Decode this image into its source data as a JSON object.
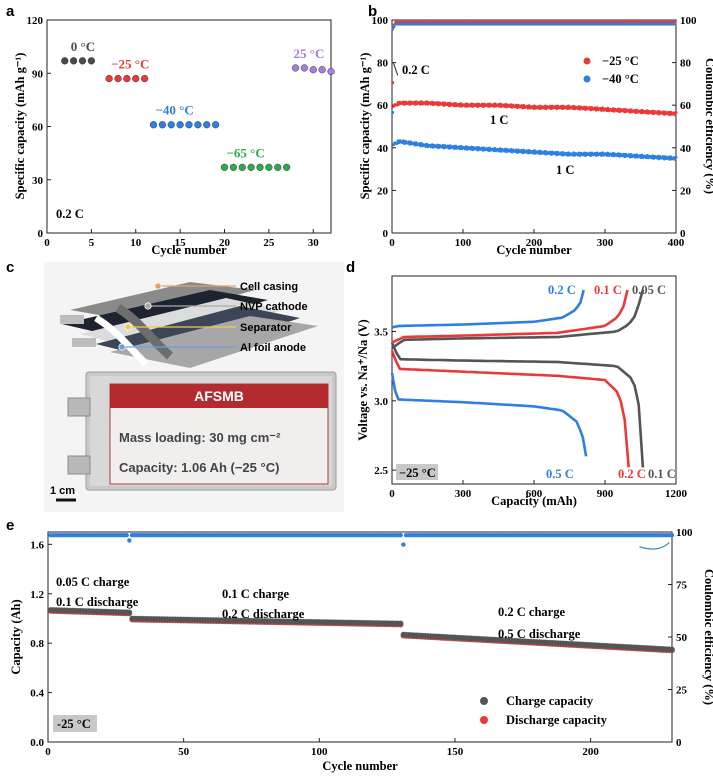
{
  "panels": {
    "a": "a",
    "b": "b",
    "c": "c",
    "d": "d",
    "e": "e"
  },
  "colors": {
    "black": "#4a4a4a",
    "red": "#e83a3a",
    "blue": "#2e7fe0",
    "green": "#2fa84f",
    "purple": "#a77be0",
    "grey_d": "#555555"
  },
  "chart_data": [
    {
      "id": "a",
      "type": "scatter",
      "xlabel": "Cycle number",
      "ylabel": "Specific capacity (mAh g⁻¹)",
      "xlim": [
        0,
        32
      ],
      "ylim": [
        0,
        120
      ],
      "xticks": [
        0,
        5,
        10,
        15,
        20,
        25,
        30
      ],
      "yticks": [
        0,
        30,
        60,
        90,
        120
      ],
      "groups": [
        {
          "label": "0 °C",
          "color_key": "black",
          "x": [
            2,
            3,
            4,
            5
          ],
          "values": [
            97,
            97,
            97,
            97
          ]
        },
        {
          "label": "−25 °C",
          "color_key": "red",
          "x": [
            7,
            8,
            9,
            10,
            11
          ],
          "values": [
            87,
            87,
            87,
            87,
            87
          ]
        },
        {
          "label": "−40 °C",
          "color_key": "blue",
          "x": [
            12,
            13,
            14,
            15,
            16,
            17,
            18,
            19
          ],
          "values": [
            61,
            61,
            61,
            61,
            61,
            61,
            61,
            61
          ]
        },
        {
          "label": "−65 °C",
          "color_key": "green",
          "x": [
            20,
            21,
            22,
            23,
            24,
            25,
            26,
            27
          ],
          "values": [
            37,
            37,
            37,
            37,
            37,
            37,
            37,
            37
          ]
        },
        {
          "label": "25 °C",
          "color_key": "purple",
          "x": [
            28,
            29,
            30,
            31,
            32
          ],
          "values": [
            93,
            93,
            92,
            92,
            91
          ]
        }
      ],
      "rate_label": "0.2 C"
    },
    {
      "id": "b",
      "type": "line",
      "xlabel": "Cycle number",
      "ylabel": "Specific capacity (mAh g⁻¹)",
      "ylabel2": "Coulombic efficiency (%)",
      "xlim": [
        0,
        400
      ],
      "ylim": [
        0,
        100
      ],
      "y2lim": [
        0,
        100
      ],
      "xticks": [
        0,
        100,
        200,
        300,
        400
      ],
      "yticks": [
        0,
        20,
        40,
        60,
        80,
        100
      ],
      "y2ticks": [
        0,
        20,
        40,
        60,
        80,
        100
      ],
      "series": [
        {
          "name": "−25 °C",
          "color_key": "red",
          "x": [
            0,
            2,
            5,
            10,
            30,
            50,
            100,
            150,
            200,
            250,
            300,
            350,
            400
          ],
          "values": [
            80,
            60,
            60,
            61,
            61,
            61,
            60,
            60,
            59,
            59,
            58,
            57,
            56
          ]
        },
        {
          "name": "−40 °C",
          "color_key": "blue",
          "x": [
            0,
            2,
            5,
            10,
            30,
            50,
            100,
            150,
            200,
            250,
            300,
            350,
            400
          ],
          "values": [
            70,
            42,
            42,
            43,
            42,
            41,
            40,
            39,
            38,
            37,
            37,
            36,
            35
          ]
        }
      ],
      "ce": [
        {
          "color_key": "red",
          "x": [
            0,
            5,
            400
          ],
          "values": [
            96,
            99,
            99
          ]
        },
        {
          "color_key": "blue",
          "x": [
            0,
            5,
            400
          ],
          "values": [
            95,
            98,
            98
          ]
        }
      ],
      "annotations": {
        "start_rate": "0.2 C",
        "red_rate": "1 C",
        "blue_rate": "1 C"
      },
      "legend_position": "top-right"
    },
    {
      "id": "d",
      "type": "line",
      "xlabel": "Capacity (mAh)",
      "ylabel": "Voltage vs. Na⁺/Na (V)",
      "xlim": [
        0,
        1200
      ],
      "ylim": [
        2.4,
        3.9
      ],
      "xticks": [
        0,
        300,
        600,
        900,
        1200
      ],
      "yticks": [
        2.5,
        3.0,
        3.5,
        4.0
      ],
      "ytick_labels": [
        "2.5",
        "3.0",
        "3.5",
        "4.0"
      ],
      "series": [
        {
          "name": "0.05 C",
          "color_key": "grey_d",
          "kind": "charge",
          "x": [
            0,
            50,
            300,
            700,
            950,
            1000,
            1030,
            1060
          ],
          "values": [
            3.38,
            3.44,
            3.45,
            3.46,
            3.5,
            3.55,
            3.62,
            3.8
          ]
        },
        {
          "name": "0.1 C",
          "color_key": "grey_d",
          "kind": "discharge",
          "x": [
            0,
            30,
            300,
            700,
            950,
            1020,
            1045,
            1060
          ],
          "values": [
            3.42,
            3.3,
            3.29,
            3.28,
            3.25,
            3.15,
            2.95,
            2.52
          ]
        },
        {
          "name": "0.1 C",
          "color_key": "red",
          "kind": "charge",
          "x": [
            0,
            50,
            300,
            700,
            900,
            950,
            975,
            995
          ],
          "values": [
            3.42,
            3.46,
            3.47,
            3.49,
            3.54,
            3.6,
            3.66,
            3.8
          ]
        },
        {
          "name": "0.2 C",
          "color_key": "red",
          "kind": "discharge",
          "x": [
            0,
            30,
            300,
            700,
            900,
            960,
            985,
            1000
          ],
          "values": [
            3.36,
            3.23,
            3.21,
            3.18,
            3.15,
            3.05,
            2.85,
            2.52
          ]
        },
        {
          "name": "0.2 C",
          "color_key": "blue",
          "kind": "charge",
          "x": [
            0,
            30,
            300,
            600,
            720,
            770,
            795,
            810
          ],
          "values": [
            3.53,
            3.54,
            3.55,
            3.57,
            3.6,
            3.65,
            3.7,
            3.8
          ]
        },
        {
          "name": "0.5 C",
          "color_key": "blue",
          "kind": "discharge",
          "x": [
            0,
            20,
            300,
            600,
            720,
            780,
            805,
            820
          ],
          "values": [
            3.2,
            3.01,
            2.99,
            2.96,
            2.93,
            2.85,
            2.75,
            2.6
          ]
        }
      ],
      "labels": {
        "c1": "0.2 C",
        "c2": "0.1 C",
        "c3": "0.05 C",
        "d1": "0.5 C",
        "d2": "0.2 C",
        "d3": "0.1 C"
      },
      "temp": "−25 °C"
    },
    {
      "id": "e",
      "type": "scatter",
      "xlabel": "Cycle number",
      "ylabel": "Capacity (Ah)",
      "ylabel2": "Coulombic efficiency (%)",
      "xlim": [
        0,
        230
      ],
      "ylim": [
        0,
        1.7
      ],
      "y2lim": [
        0,
        100
      ],
      "xticks": [
        0,
        50,
        100,
        150,
        200
      ],
      "yticks": [
        0.0,
        0.4,
        0.8,
        1.2,
        1.6
      ],
      "ytick_labels": [
        "0.0",
        "0.4",
        "0.8",
        "1.2",
        "1.6"
      ],
      "y2ticks": [
        0,
        25,
        50,
        75,
        100
      ],
      "series": [
        {
          "name": "Charge capacity",
          "color_key": "grey_d",
          "segments": [
            [
              1,
              30,
              1.07,
              1.05
            ],
            [
              31,
              130,
              1.0,
              0.96
            ],
            [
              131,
              230,
              0.87,
              0.75
            ]
          ]
        },
        {
          "name": "Discharge capacity",
          "color_key": "red",
          "segments": [
            [
              1,
              30,
              1.06,
              1.04
            ],
            [
              31,
              130,
              0.99,
              0.95
            ],
            [
              131,
              230,
              0.86,
              0.74
            ]
          ]
        }
      ],
      "ce": {
        "color_key": "blue",
        "value": 98.5,
        "dips": [
          [
            30,
            96
          ],
          [
            131,
            94
          ]
        ]
      },
      "annotations": {
        "g1a": "0.05 C charge",
        "g1b": "0.1 C discharge",
        "g2a": "0.1 C charge",
        "g2b": "0.2 C discharge",
        "g3a": "0.2 C charge",
        "g3b": "0.5 C discharge",
        "temp": "-25 °C"
      },
      "legend_position": "bottom-right"
    }
  ],
  "panel_c": {
    "labels": [
      "Cell casing",
      "NVP cathode",
      "Separator",
      "Al foil anode"
    ],
    "card_title": "AFSMB",
    "card_line1": "Mass loading: 30 mg cm⁻²",
    "card_line2": "Capacity: 1.06 Ah (−25 °C)",
    "scale": "1 cm"
  }
}
